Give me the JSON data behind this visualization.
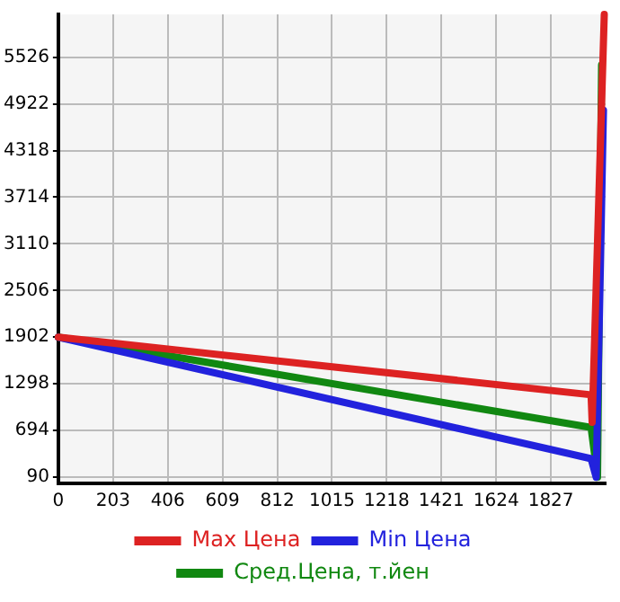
{
  "chart_data": {
    "type": "line",
    "xlim": [
      0,
      2030
    ],
    "ylim": [
      10,
      6080
    ],
    "xticks": [
      0,
      203,
      406,
      609,
      812,
      1015,
      1218,
      1421,
      1624,
      1827
    ],
    "yticks": [
      90,
      694,
      1298,
      1902,
      2506,
      3110,
      3714,
      4318,
      4922,
      5526
    ],
    "grid": true,
    "legend": "bottom",
    "marker": "none",
    "series": [
      {
        "name": "Max Цена",
        "color": "#dd2222",
        "x": [
          0,
          1976,
          1980,
          2025
        ],
        "values": [
          1902,
          1157,
          800,
          6080
        ]
      },
      {
        "name": "Min Цена",
        "color": "#2222dd",
        "x": [
          0,
          1976,
          1995,
          2022
        ],
        "values": [
          1902,
          330,
          90,
          4840
        ]
      },
      {
        "name": "Сред.Цена, т.йен",
        "color": "#118811",
        "x": [
          0,
          1976,
          2000,
          2015
        ],
        "values": [
          1902,
          734,
          90,
          5426
        ]
      }
    ]
  }
}
